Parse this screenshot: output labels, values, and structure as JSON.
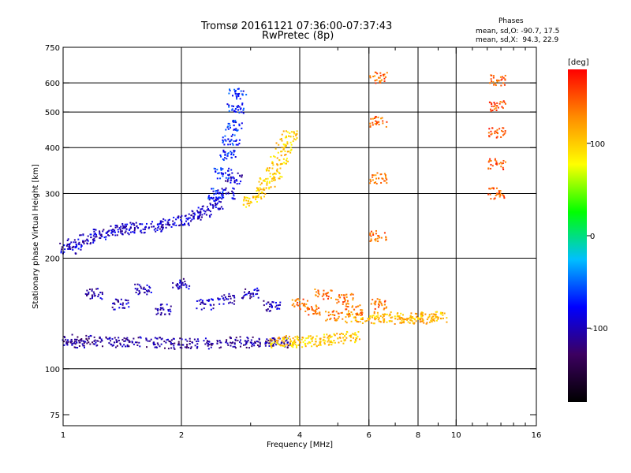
{
  "header": {
    "title_line1": "Tromsø 20161121 07:36:00-07:37:43",
    "title_line2": "RwPretec (8p)",
    "stats_heading": "Phases",
    "stats_o": "mean, sd,O: -90.7, 17.5",
    "stats_x": "mean, sd,X:  94.3, 22.9"
  },
  "chart_data": {
    "type": "scatter",
    "xlabel": "Frequency [MHz]",
    "ylabel": "Stationary phase Virtual Height [km]",
    "x_scale": "log",
    "y_scale": "log",
    "xlim": [
      1,
      16
    ],
    "ylim": [
      70,
      750
    ],
    "grid": true,
    "x_ticks": [
      {
        "v": 1,
        "label": "1"
      },
      {
        "v": 2,
        "label": "2"
      },
      {
        "v": 4,
        "label": "4"
      },
      {
        "v": 6,
        "label": "6"
      },
      {
        "v": 8,
        "label": "8"
      },
      {
        "v": 10,
        "label": "10"
      },
      {
        "v": 16,
        "label": "16"
      }
    ],
    "x_grid": [
      2,
      4,
      6,
      8,
      10
    ],
    "x_minor": [
      3,
      5,
      7,
      9,
      11,
      12,
      13,
      14,
      15
    ],
    "y_ticks": [
      {
        "v": 75,
        "label": "75"
      },
      {
        "v": 100,
        "label": "100"
      },
      {
        "v": 200,
        "label": "200"
      },
      {
        "v": 300,
        "label": "300"
      },
      {
        "v": 400,
        "label": "400"
      },
      {
        "v": 500,
        "label": "500"
      },
      {
        "v": 600,
        "label": "600"
      },
      {
        "v": 750,
        "label": "750"
      }
    ],
    "y_grid": [
      100,
      200,
      300,
      400,
      500,
      600
    ],
    "colorbar": {
      "label": "[deg]",
      "range": [
        -180,
        180
      ],
      "ticks": [
        {
          "v": 100,
          "label": "100"
        },
        {
          "v": 0,
          "label": "0"
        },
        {
          "v": -100,
          "label": "-100"
        }
      ],
      "colors": [
        "#000000",
        "#3c0060",
        "#0000ff",
        "#00bfff",
        "#00ff00",
        "#ffff00",
        "#ff8c00",
        "#ff0000"
      ]
    },
    "series": [
      {
        "freq": [
          1.03,
          1.08,
          1.15,
          1.25,
          1.35,
          1.45,
          1.55,
          1.7,
          1.85,
          2.0,
          2.15,
          2.3,
          2.45,
          2.6,
          2.72
        ],
        "height": [
          212,
          218,
          225,
          232,
          238,
          240,
          242,
          244,
          247,
          252,
          260,
          268,
          280,
          300,
          330
        ],
        "phase": -95
      },
      {
        "freq": [
          2.45,
          2.55,
          2.62,
          2.68,
          2.72,
          2.75,
          2.78
        ],
        "height": [
          300,
          340,
          380,
          420,
          460,
          510,
          560
        ],
        "phase": -70
      },
      {
        "freq": [
          1.05,
          1.1,
          1.2,
          1.35,
          1.5,
          1.7,
          1.9,
          2.1,
          2.4,
          2.7,
          3.0,
          3.3,
          3.6
        ],
        "height": [
          120,
          118,
          119,
          118,
          118,
          118,
          117,
          117,
          117,
          118,
          118,
          118,
          118
        ],
        "phase": -110
      },
      {
        "freq": [
          3.5,
          3.8,
          4.0,
          4.3,
          4.6,
          5.0,
          5.4
        ],
        "height": [
          118,
          119,
          118,
          119,
          120,
          121,
          122
        ],
        "phase": 100
      },
      {
        "freq": [
          5.5,
          6.0,
          6.5,
          7.0,
          7.5,
          8.0,
          8.5,
          9.0
        ],
        "height": [
          138,
          137,
          138,
          137,
          137,
          137,
          138,
          138
        ],
        "phase": 110
      },
      {
        "freq": [
          3.0,
          3.15,
          3.3,
          3.45,
          3.55,
          3.65,
          3.75
        ],
        "height": [
          285,
          300,
          320,
          340,
          370,
          400,
          430
        ],
        "phase": 100
      },
      {
        "freq": [
          1.2,
          1.4,
          1.6,
          1.8,
          2.0,
          2.3,
          2.6,
          3.0,
          3.4
        ],
        "height": [
          160,
          150,
          165,
          145,
          170,
          150,
          155,
          160,
          148
        ],
        "phase": -100
      },
      {
        "freq": [
          4.0,
          4.3,
          4.6,
          4.9,
          5.2,
          5.5
        ],
        "height": [
          150,
          145,
          160,
          140,
          155,
          145
        ],
        "phase": 140
      },
      {
        "freq": [
          6.35,
          6.35,
          6.35,
          6.35,
          6.35
        ],
        "height": [
          150,
          230,
          330,
          470,
          620
        ],
        "phase": 140
      },
      {
        "freq": [
          12.7,
          12.7,
          12.7,
          12.7,
          12.7
        ],
        "height": [
          300,
          360,
          440,
          520,
          610
        ],
        "phase": 150
      }
    ]
  }
}
